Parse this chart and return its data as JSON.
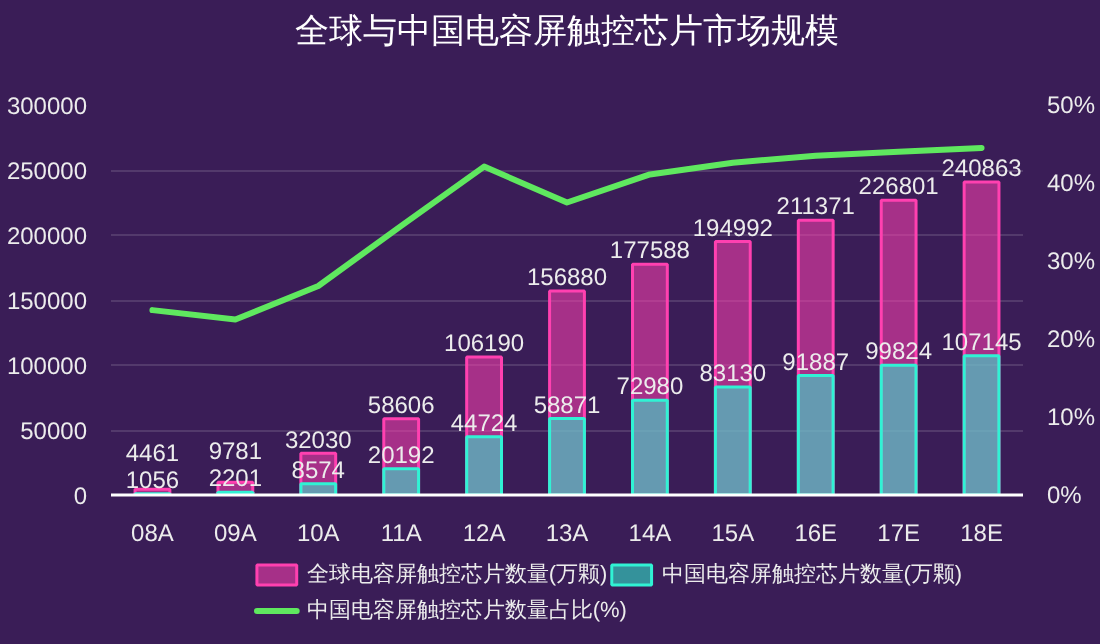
{
  "chart_data": {
    "type": "bar",
    "title": "全球与中国电容屏触控芯片市场规模",
    "categories": [
      "08A",
      "09A",
      "10A",
      "11A",
      "12A",
      "13A",
      "14A",
      "15A",
      "16E",
      "17E",
      "18E"
    ],
    "series": [
      {
        "name": "全球电容屏触控芯片数量(万颗)",
        "color": "#ff40b0",
        "values": [
          4461,
          9781,
          32030,
          58606,
          106190,
          156880,
          177588,
          194992,
          211371,
          226801,
          240863
        ],
        "value_labels": [
          "4461",
          "9781",
          "32030",
          "58606",
          "106190",
          "156880",
          "177588",
          "194992",
          "211371",
          "226801",
          "240863"
        ]
      },
      {
        "name": "中国电容屏触控芯片数量(万颗)",
        "color": "#30f2d4",
        "values": [
          1056,
          2201,
          8574,
          20192,
          44724,
          58871,
          72980,
          83130,
          91887,
          99824,
          107145
        ],
        "value_labels": [
          "1056",
          "2201",
          "8574",
          "20192",
          "44724",
          "58871",
          "72980",
          "83130",
          "91887",
          "99824",
          "107145"
        ]
      },
      {
        "name": "中国电容屏触控芯片数量占比(%)",
        "type": "line",
        "axis": "y2",
        "color": "#5fe85f",
        "values": [
          23.7,
          22.5,
          26.8,
          34.5,
          42.1,
          37.5,
          41.1,
          42.6,
          43.5,
          44.0,
          44.5
        ]
      }
    ],
    "ylim": [
      0,
      300000
    ],
    "yticks": [
      0,
      50000,
      100000,
      150000,
      200000,
      250000,
      300000
    ],
    "y2lim": [
      0,
      50
    ],
    "y2ticks": [
      {
        "value": 0,
        "label": "0%"
      },
      {
        "value": 10,
        "label": "10%"
      },
      {
        "value": 20,
        "label": "20%"
      },
      {
        "value": 30,
        "label": "30%"
      },
      {
        "value": 40,
        "label": "40%"
      },
      {
        "value": 50,
        "label": "50%"
      }
    ],
    "grid": "y",
    "legend": "bottom",
    "line_style": "solid"
  }
}
